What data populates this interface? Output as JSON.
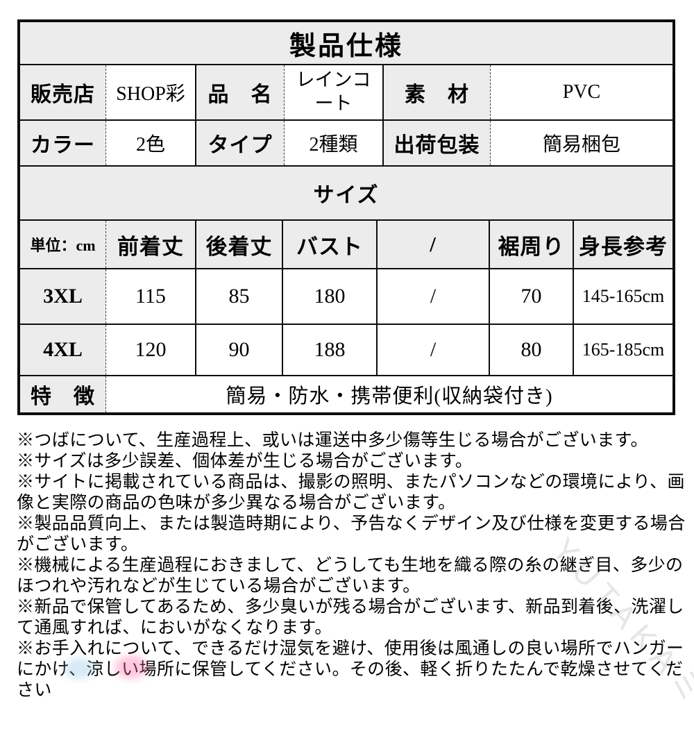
{
  "spec_table": {
    "title": "製品仕様",
    "info_rows": [
      [
        "販売店",
        "SHOP彩",
        "品　名",
        "レインコート",
        "素　材",
        "PVC"
      ],
      [
        "カラー",
        "2色",
        "タイプ",
        "2種類",
        "出荷包装",
        "簡易梱包"
      ]
    ],
    "size_section": {
      "banner": "サイズ",
      "headers": [
        "単位：cm",
        "前着丈",
        "後着丈",
        "バスト",
        "/",
        "裾周り",
        "身長参考"
      ],
      "rows": [
        [
          "3XL",
          "115",
          "85",
          "180",
          "/",
          "70",
          "145-165cm"
        ],
        [
          "4XL",
          "120",
          "90",
          "188",
          "/",
          "80",
          "165-185cm"
        ]
      ]
    },
    "feature": {
      "label": "特　徴",
      "value": "簡易・防水・携帯便利(収納袋付き)"
    }
  },
  "notes": [
    "※つばについて、生産過程上、或いは運送中多少傷等生じる場合がございます。",
    "※サイズは多少誤差、個体差が生じる場合がございます。",
    "※サイトに掲載されている商品は、撮影の照明、またパソコンなどの環境により、画像と実際の商品の色味が多少異なる場合がございます。",
    "※製品品質向上、または製造時期により、予告なくデザイン及び仕様を変更する場合がございます。",
    "※機械による生産過程におきまして、どうしても生地を織る際の糸の継ぎ目、多少のほつれや汚れなどが生じている場合がございます。",
    "※新品で保管してあるため、多少臭いが残る場合がございます、新品到着後、洗濯して通風すれば、においがなくなります。",
    "※お手入れについて、できるだけ湿気を避け、使用後は風通しの良い場所でハンガーにかけ、涼しい場所に保管してください。その後、軽く折りたたんで乾燥させてください"
  ],
  "watermark": {
    "text": "YUTAKAミス"
  },
  "colors": {
    "label_bg": "#ececec",
    "border": "#0d0d0d",
    "smudge_pink": "#ff6ea5",
    "smudge_blue": "#96c8e6"
  }
}
